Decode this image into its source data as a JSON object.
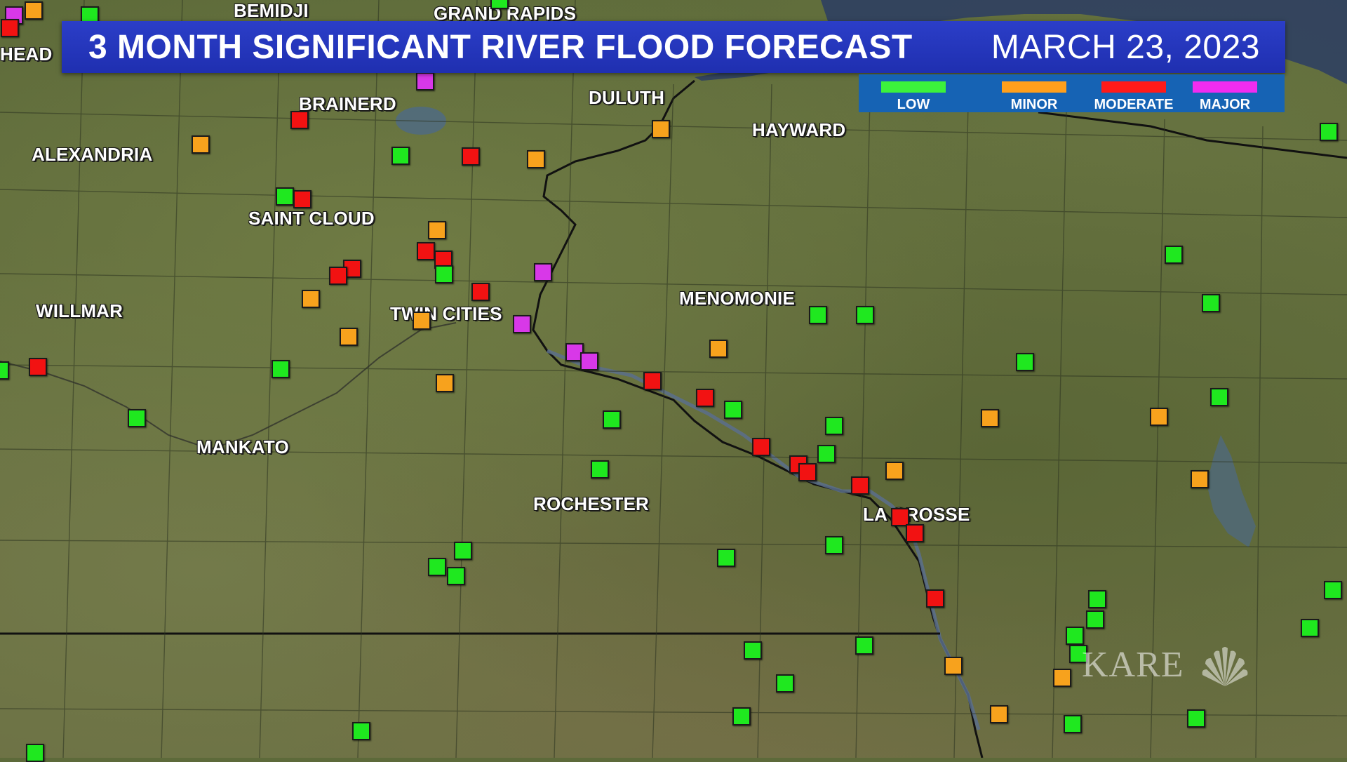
{
  "title": "3 MONTH SIGNIFICANT RIVER FLOOD FORECAST",
  "date": "MARCH 23, 2023",
  "legend": [
    {
      "label": "LOW",
      "color": "#3cf23c"
    },
    {
      "label": "MINOR",
      "color": "#ff9f1c"
    },
    {
      "label": "MODERATE",
      "color": "#ff1a1a"
    },
    {
      "label": "MAJOR",
      "color": "#f02cf0"
    }
  ],
  "colors": {
    "low": "#1fe81f",
    "minor": "#f7a21d",
    "moderate": "#f21212",
    "major": "#d838e8",
    "banner": "#2236be",
    "legend_bg": "#1663b4"
  },
  "cities": {
    "bemidji": "BEMIDJI",
    "grand_rapids": "GRAND RAPIDS",
    "moorhead": "HEAD",
    "brainerd": "BRAINERD",
    "duluth": "DULUTH",
    "hayward": "HAYWARD",
    "alexandria": "ALEXANDRIA",
    "saint_cloud": "SAINT CLOUD",
    "willmar": "WILLMAR",
    "twin_cities": "TWIN CITIES",
    "menomonie": "MENOMONIE",
    "mankato": "MANKATO",
    "rochester": "ROCHESTER",
    "la_crosse": "LA CROSSE"
  },
  "logo": {
    "text": "KARE",
    "icon": "nbc-peacock-icon"
  }
}
